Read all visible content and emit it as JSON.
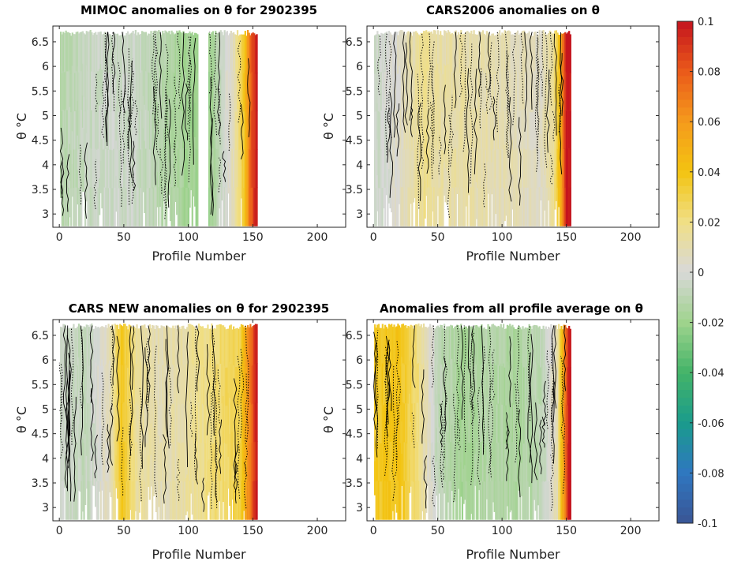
{
  "chart_data": [
    {
      "type": "heatmap",
      "title": "MIMOC anomalies on θ  for 2902395",
      "xlabel": "Profile Number",
      "ylabel": "θ °C",
      "xlim": [
        -5,
        222
      ],
      "ylim": [
        2.73,
        6.82
      ],
      "xticks": [
        0,
        50,
        100,
        150,
        200
      ],
      "yticks": [
        3,
        3.5,
        4,
        4.5,
        5,
        5.5,
        6,
        6.5
      ],
      "profile_range": [
        1,
        153
      ],
      "gaps": [
        [
          108,
          115
        ]
      ],
      "anomaly_profile": [
        {
          "x": 0,
          "v": -0.012
        },
        {
          "x": 20,
          "v": -0.006
        },
        {
          "x": 40,
          "v": -0.004
        },
        {
          "x": 60,
          "v": -0.005
        },
        {
          "x": 80,
          "v": -0.012
        },
        {
          "x": 100,
          "v": -0.018
        },
        {
          "x": 115,
          "v": -0.022
        },
        {
          "x": 125,
          "v": -0.006
        },
        {
          "x": 135,
          "v": 0.008
        },
        {
          "x": 143,
          "v": 0.035
        },
        {
          "x": 148,
          "v": 0.075
        },
        {
          "x": 153,
          "v": 0.1
        }
      ]
    },
    {
      "type": "heatmap",
      "title": "CARS2006 anomalies on θ",
      "xlabel": "Profile Number",
      "ylabel": "θ °C",
      "xlim": [
        -5,
        222
      ],
      "ylim": [
        2.73,
        6.82
      ],
      "xticks": [
        0,
        50,
        100,
        150,
        200
      ],
      "yticks": [
        3,
        3.5,
        4,
        4.5,
        5,
        5.5,
        6,
        6.5
      ],
      "profile_range": [
        1,
        153
      ],
      "gaps": [],
      "anomaly_profile": [
        {
          "x": 0,
          "v": -0.006
        },
        {
          "x": 20,
          "v": 0.004
        },
        {
          "x": 40,
          "v": 0.018
        },
        {
          "x": 50,
          "v": 0.012
        },
        {
          "x": 70,
          "v": 0.012
        },
        {
          "x": 90,
          "v": 0.01
        },
        {
          "x": 110,
          "v": 0.008
        },
        {
          "x": 130,
          "v": 0.005
        },
        {
          "x": 140,
          "v": 0.016
        },
        {
          "x": 145,
          "v": 0.045
        },
        {
          "x": 150,
          "v": 0.1
        }
      ]
    },
    {
      "type": "heatmap",
      "title": "CARS NEW anomalies on θ for 2902395",
      "xlabel": "Profile Number",
      "ylabel": "θ °C",
      "xlim": [
        -5,
        222
      ],
      "ylim": [
        2.73,
        6.82
      ],
      "xticks": [
        0,
        50,
        100,
        150,
        200
      ],
      "yticks": [
        3,
        3.5,
        4,
        4.5,
        5,
        5.5,
        6,
        6.5
      ],
      "profile_range": [
        1,
        153
      ],
      "gaps": [],
      "anomaly_profile": [
        {
          "x": 0,
          "v": -0.004
        },
        {
          "x": 20,
          "v": -0.008
        },
        {
          "x": 40,
          "v": 0.008
        },
        {
          "x": 48,
          "v": 0.038
        },
        {
          "x": 60,
          "v": 0.015
        },
        {
          "x": 80,
          "v": 0.008
        },
        {
          "x": 100,
          "v": 0.014
        },
        {
          "x": 120,
          "v": 0.022
        },
        {
          "x": 140,
          "v": 0.03
        },
        {
          "x": 148,
          "v": 0.07
        },
        {
          "x": 153,
          "v": 0.1
        }
      ]
    },
    {
      "type": "heatmap",
      "title": "Anomalies from all profile average on θ",
      "xlabel": "Profile Number",
      "ylabel": "θ °C",
      "xlim": [
        -5,
        222
      ],
      "ylim": [
        2.73,
        6.82
      ],
      "xticks": [
        0,
        50,
        100,
        150,
        200
      ],
      "yticks": [
        3,
        3.5,
        4,
        4.5,
        5,
        5.5,
        6,
        6.5
      ],
      "profile_range": [
        1,
        153
      ],
      "gaps": [],
      "anomaly_profile": [
        {
          "x": 0,
          "v": 0.035
        },
        {
          "x": 20,
          "v": 0.04
        },
        {
          "x": 35,
          "v": 0.02
        },
        {
          "x": 50,
          "v": -0.008
        },
        {
          "x": 70,
          "v": -0.018
        },
        {
          "x": 90,
          "v": -0.012
        },
        {
          "x": 110,
          "v": -0.016
        },
        {
          "x": 130,
          "v": -0.01
        },
        {
          "x": 143,
          "v": 0.01
        },
        {
          "x": 148,
          "v": 0.06
        },
        {
          "x": 152,
          "v": 0.1
        }
      ]
    }
  ],
  "colorbar": {
    "min": -0.1,
    "max": 0.1,
    "ticks": [
      {
        "value": 0.1,
        "label": "0.1"
      },
      {
        "value": 0.08,
        "label": "0.08"
      },
      {
        "value": 0.06,
        "label": "0.06"
      },
      {
        "value": 0.04,
        "label": "0.04"
      },
      {
        "value": 0.02,
        "label": "0.02"
      },
      {
        "value": 0,
        "label": "0"
      },
      {
        "value": -0.02,
        "label": "-0.02"
      },
      {
        "value": -0.04,
        "label": "-0.04"
      },
      {
        "value": -0.06,
        "label": "-0.06"
      },
      {
        "value": -0.08,
        "label": "-0.08"
      },
      {
        "value": -0.1,
        "label": "-0.1"
      }
    ],
    "stops": [
      {
        "value": -0.1,
        "color": "#3a5595"
      },
      {
        "value": -0.08,
        "color": "#2f77c0"
      },
      {
        "value": -0.06,
        "color": "#1a9b8c"
      },
      {
        "value": -0.04,
        "color": "#44b468"
      },
      {
        "value": -0.02,
        "color": "#9fd38d"
      },
      {
        "value": 0,
        "color": "#d8d8d8"
      },
      {
        "value": 0.02,
        "color": "#f0df86"
      },
      {
        "value": 0.04,
        "color": "#f3c411"
      },
      {
        "value": 0.06,
        "color": "#f59a1c"
      },
      {
        "value": 0.08,
        "color": "#ea5a1a"
      },
      {
        "value": 0.1,
        "color": "#c4141e"
      }
    ]
  }
}
